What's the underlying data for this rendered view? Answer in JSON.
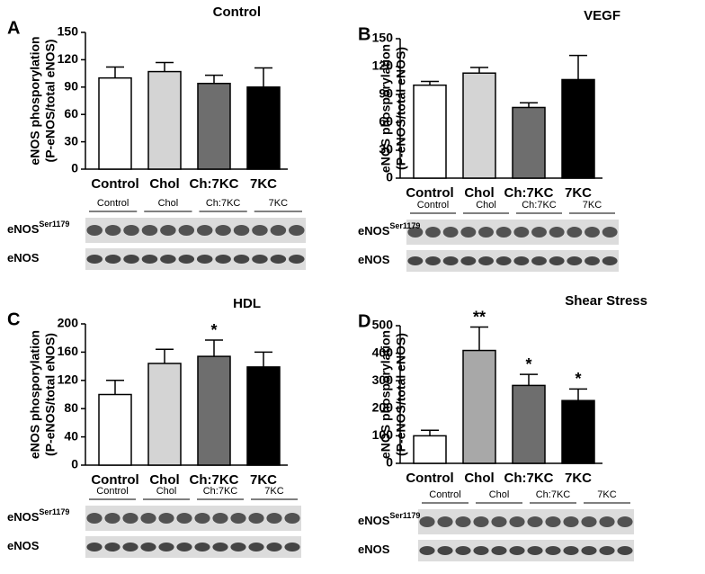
{
  "chart_data": [
    {
      "type": "bar",
      "panel": "A",
      "title": "Control",
      "ylabel": "eNOS phosporylation",
      "ylabel2": "(P-eNOS/total eNOS)",
      "categories": [
        "Control",
        "Chol",
        "Ch:7KC",
        "7KC"
      ],
      "values": [
        100,
        107,
        94,
        90
      ],
      "errors": [
        12,
        10,
        9,
        21
      ],
      "annotations": [
        null,
        null,
        null,
        null
      ],
      "colors": [
        "#ffffff",
        "#d4d4d4",
        "#6e6e6e",
        "#000000"
      ],
      "ylim": [
        0,
        150
      ],
      "yticks": [
        0,
        30,
        60,
        90,
        120,
        150
      ],
      "blot": {
        "lanes": [
          "Control",
          "Chol",
          "Ch:7KC",
          "7KC"
        ],
        "rows": [
          {
            "label": "eNOS",
            "sup": "Ser1179"
          },
          {
            "label": "eNOS"
          }
        ]
      }
    },
    {
      "type": "bar",
      "panel": "B",
      "title": "VEGF",
      "ylabel": "eNOS phosporylation",
      "ylabel2": "(P-eNOS/total eNOS)",
      "categories": [
        "Control",
        "Chol",
        "Ch:7KC",
        "7KC"
      ],
      "values": [
        100,
        113,
        76,
        106
      ],
      "errors": [
        4,
        6,
        5,
        26
      ],
      "annotations": [
        null,
        null,
        null,
        null
      ],
      "colors": [
        "#ffffff",
        "#d4d4d4",
        "#6e6e6e",
        "#000000"
      ],
      "ylim": [
        0,
        150
      ],
      "yticks": [
        0,
        30,
        60,
        90,
        120,
        150
      ],
      "blot": {
        "lanes": [
          "Control",
          "Chol",
          "Ch:7KC",
          "7KC"
        ],
        "rows": [
          {
            "label": "eNOS",
            "sup": "Ser1179"
          },
          {
            "label": "eNOS"
          }
        ]
      }
    },
    {
      "type": "bar",
      "panel": "C",
      "title": "HDL",
      "ylabel": "eNOS phosporylation",
      "ylabel2": "(P-eNOS/total eNOS)",
      "categories": [
        "Control",
        "Chol",
        "Ch:7KC",
        "7KC"
      ],
      "values": [
        100,
        144,
        154,
        139
      ],
      "errors": [
        20,
        20,
        23,
        21
      ],
      "annotations": [
        null,
        null,
        "*",
        null
      ],
      "colors": [
        "#ffffff",
        "#d4d4d4",
        "#6e6e6e",
        "#000000"
      ],
      "ylim": [
        0,
        200
      ],
      "yticks": [
        0,
        40,
        80,
        120,
        160,
        200
      ],
      "blot": {
        "lanes": [
          "Control",
          "Chol",
          "Ch:7KC",
          "7KC"
        ],
        "rows": [
          {
            "label": "eNOS",
            "sup": "Ser1179"
          },
          {
            "label": "eNOS"
          }
        ]
      }
    },
    {
      "type": "bar",
      "panel": "D",
      "title": "Shear Stress",
      "ylabel": "eNOS phosporylation",
      "ylabel2": "(P-eNOS/total eNOS)",
      "categories": [
        "Control",
        "Chol",
        "Ch:7KC",
        "7KC"
      ],
      "values": [
        100,
        410,
        283,
        228
      ],
      "errors": [
        20,
        85,
        40,
        42
      ],
      "annotations": [
        null,
        "**",
        "*",
        "*"
      ],
      "colors": [
        "#ffffff",
        "#a8a8a8",
        "#6e6e6e",
        "#000000"
      ],
      "ylim": [
        0,
        500
      ],
      "yticks": [
        0,
        100,
        200,
        300,
        400,
        500
      ],
      "blot": {
        "lanes": [
          "Control",
          "Chol",
          "Ch:7KC",
          "7KC"
        ],
        "rows": [
          {
            "label": "eNOS",
            "sup": "Ser1179"
          },
          {
            "label": "eNOS"
          }
        ]
      }
    }
  ]
}
